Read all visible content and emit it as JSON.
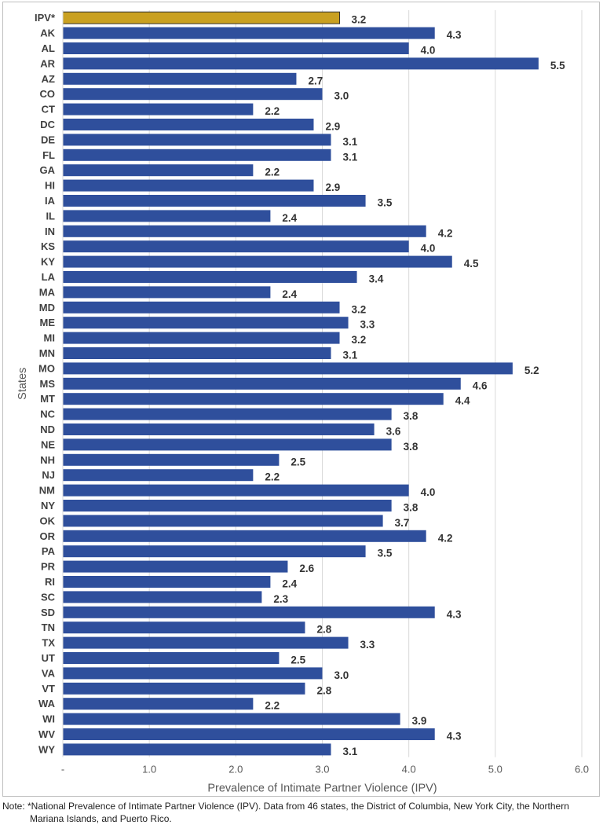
{
  "chart_data": {
    "type": "bar",
    "orientation": "horizontal",
    "xlabel": "Prevalence of Intimate Partner Violence (IPV)",
    "ylabel": "States",
    "xlim": [
      0,
      6
    ],
    "xticks": [
      "-",
      "1.0",
      "2.0",
      "3.0",
      "4.0",
      "5.0",
      "6.0"
    ],
    "grid": "vertical",
    "categories": [
      "IPV*",
      "AK",
      "AL",
      "AR",
      "AZ",
      "CO",
      "CT",
      "DC",
      "DE",
      "FL",
      "GA",
      "HI",
      "IA",
      "IL",
      "IN",
      "KS",
      "KY",
      "LA",
      "MA",
      "MD",
      "ME",
      "MI",
      "MN",
      "MO",
      "MS",
      "MT",
      "NC",
      "ND",
      "NE",
      "NH",
      "NJ",
      "NM",
      "NY",
      "OK",
      "OR",
      "PA",
      "PR",
      "RI",
      "SC",
      "SD",
      "TN",
      "TX",
      "UT",
      "VA",
      "VT",
      "WA",
      "WI",
      "WV",
      "WY"
    ],
    "values": [
      3.2,
      4.3,
      4.0,
      5.5,
      2.7,
      3.0,
      2.2,
      2.9,
      3.1,
      3.1,
      2.2,
      2.9,
      3.5,
      2.4,
      4.2,
      4.0,
      4.5,
      3.4,
      2.4,
      3.2,
      3.3,
      3.2,
      3.1,
      5.2,
      4.6,
      4.4,
      3.8,
      3.6,
      3.8,
      2.5,
      2.2,
      4.0,
      3.8,
      3.7,
      4.2,
      3.5,
      2.6,
      2.4,
      2.3,
      4.3,
      2.8,
      3.3,
      2.5,
      3.0,
      2.8,
      2.2,
      3.9,
      4.3,
      3.1
    ],
    "data_labels": [
      "3.2",
      "4.3",
      "4.0",
      "5.5",
      "2.7",
      "3.0",
      "2.2",
      "2.9",
      "3.1",
      "3.1",
      "2.2",
      "2.9",
      "3.5",
      "2.4",
      "4.2",
      "4.0",
      "4.5",
      "3.4",
      "2.4",
      "3.2",
      "3.3",
      "3.2",
      "3.1",
      "5.2",
      "4.6",
      "4.4",
      "3.8",
      "3.6",
      "3.8",
      "2.5",
      "2.2",
      "4.0",
      "3.8",
      "3.7",
      "4.2",
      "3.5",
      "2.6",
      "2.4",
      "2.3",
      "4.3",
      "2.8",
      "3.3",
      "2.5",
      "3.0",
      "2.8",
      "2.2",
      "3.9",
      "4.3",
      "3.1"
    ],
    "highlight_index": 0,
    "colors": {
      "bar": "#2f4f9c",
      "highlight": "#c9a020",
      "highlight_border": "#333333",
      "grid": "#d9d9d9",
      "text": "#404040",
      "label": "#333333"
    }
  },
  "note": {
    "line1": "Note: *National Prevalence of Intimate Partner Violence (IPV). Data from 46 states, the District of Columbia, New York City, the Northern",
    "line2": "Mariana Islands, and Puerto Rico."
  }
}
